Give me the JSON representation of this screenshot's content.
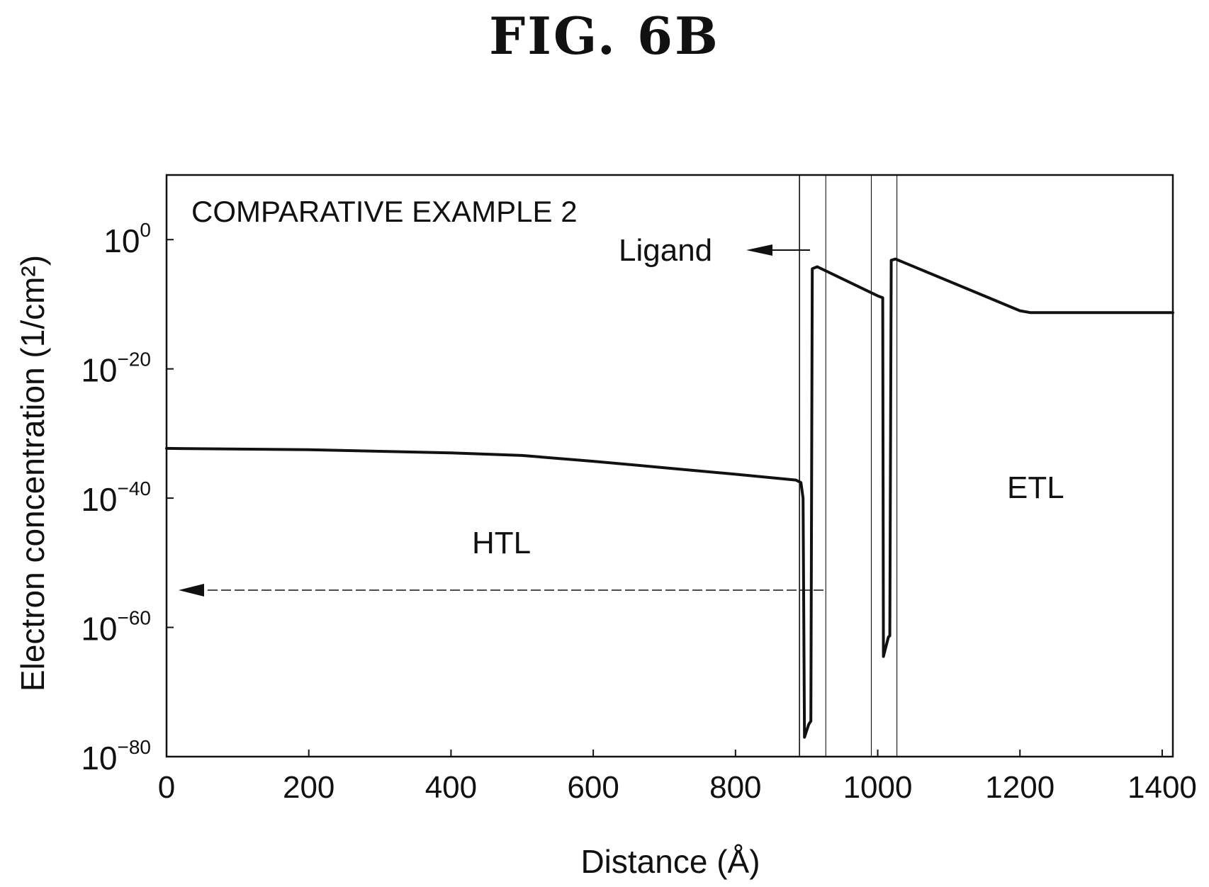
{
  "figure": {
    "title": "FIG. 6B"
  },
  "chart_data": {
    "type": "line",
    "title": "COMPARATIVE EXAMPLE 2",
    "xlabel": "Distance (Å)",
    "ylabel": "Electron concentration (1/cm²)",
    "xlim": [
      0,
      1415
    ],
    "ylim_log10": [
      -80,
      10
    ],
    "y_scale": "log",
    "x_ticks": [
      0,
      200,
      400,
      600,
      800,
      1000,
      1200,
      1400
    ],
    "y_ticks": [
      {
        "base": "10",
        "exp": "0",
        "log10": 0
      },
      {
        "base": "10",
        "exp": "−20",
        "log10": -20
      },
      {
        "base": "10",
        "exp": "−40",
        "log10": -40
      },
      {
        "base": "10",
        "exp": "−60",
        "log10": -60
      },
      {
        "base": "10",
        "exp": "−80",
        "log10": -80
      }
    ],
    "layer_boundaries_x": [
      890,
      927,
      991,
      1027
    ],
    "series": [
      {
        "x_log10y": [
          [
            0,
            -32.3
          ],
          [
            200,
            -32.5
          ],
          [
            400,
            -33.0
          ],
          [
            500,
            -33.4
          ],
          [
            600,
            -34.3
          ],
          [
            700,
            -35.3
          ],
          [
            800,
            -36.3
          ],
          [
            885,
            -37.2
          ],
          [
            892,
            -37.6
          ],
          [
            895,
            -40.0
          ],
          [
            897,
            -77.0
          ],
          [
            903,
            -75.0
          ],
          [
            906,
            -74.5
          ],
          [
            908,
            -4.5
          ],
          [
            915,
            -4.2
          ],
          [
            1000,
            -8.7
          ],
          [
            1007,
            -9.0
          ],
          [
            1008,
            -64.5
          ],
          [
            1015,
            -61.5
          ],
          [
            1017,
            -61.3
          ],
          [
            1019,
            -3.2
          ],
          [
            1025,
            -3.0
          ],
          [
            1200,
            -11.0
          ],
          [
            1215,
            -11.3
          ],
          [
            1415,
            -11.3
          ]
        ]
      }
    ],
    "annotations": {
      "ligand_label": "Ligand",
      "htl_label": "HTL",
      "etl_label": "ETL"
    }
  }
}
